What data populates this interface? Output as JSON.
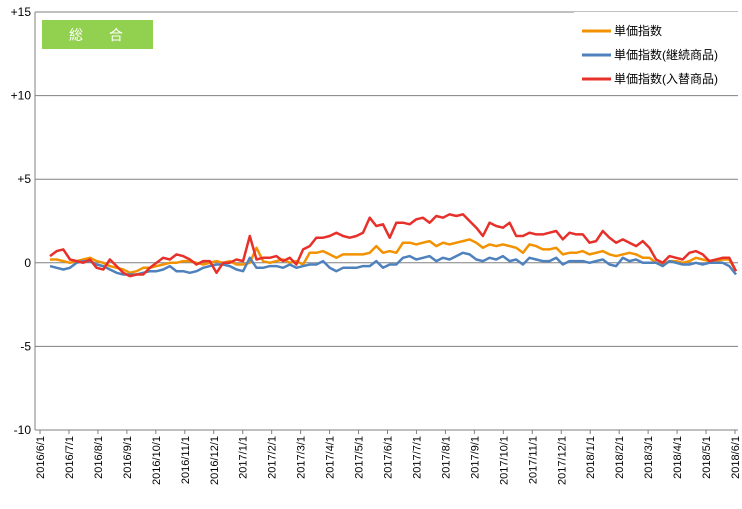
{
  "badge": {
    "label": "総　合",
    "color": "#92D050"
  },
  "chart_data": {
    "type": "line",
    "ylim": [
      -10,
      15
    ],
    "y_ticks": [
      {
        "value": 15,
        "label": "+15"
      },
      {
        "value": 10,
        "label": "+10"
      },
      {
        "value": 5,
        "label": "+5"
      },
      {
        "value": 0,
        "label": "0"
      },
      {
        "value": -5,
        "label": "-5"
      },
      {
        "value": -10,
        "label": "-10"
      }
    ],
    "grid": "horizontal",
    "legend_position": "top-right",
    "x_labels": [
      "2016/6/1",
      "2016/7/1",
      "2016/8/1",
      "2016/9/1",
      "2016/10/1",
      "2016/11/1",
      "2016/12/1",
      "2017/1/1",
      "2017/2/1",
      "2017/3/1",
      "2017/4/1",
      "2017/5/1",
      "2017/6/1",
      "2017/7/1",
      "2017/8/1",
      "2017/9/1",
      "2017/10/1",
      "2017/11/1",
      "2017/12/1",
      "2018/1/1",
      "2018/2/1",
      "2018/3/1",
      "2018/4/1",
      "2018/5/1",
      "2018/6/1"
    ],
    "series": [
      {
        "name": "単価指数",
        "color": "#F39200",
        "values": [
          0.2,
          0.2,
          0.1,
          0.0,
          0.1,
          0.2,
          0.3,
          0.1,
          0.0,
          -0.2,
          -0.3,
          -0.4,
          -0.6,
          -0.5,
          -0.3,
          -0.3,
          -0.2,
          -0.1,
          0.0,
          0.0,
          0.1,
          0.1,
          0.0,
          -0.1,
          0.0,
          0.1,
          0.0,
          0.1,
          -0.1,
          -0.1,
          0.0,
          0.9,
          0.1,
          0.0,
          0.1,
          0.2,
          0.0,
          0.1,
          -0.1,
          0.6,
          0.6,
          0.7,
          0.5,
          0.3,
          0.5,
          0.5,
          0.5,
          0.5,
          0.6,
          1.0,
          0.6,
          0.7,
          0.6,
          1.2,
          1.2,
          1.1,
          1.2,
          1.3,
          1.0,
          1.2,
          1.1,
          1.2,
          1.3,
          1.4,
          1.2,
          0.9,
          1.1,
          1.0,
          1.1,
          1.0,
          0.9,
          0.6,
          1.1,
          1.0,
          0.8,
          0.8,
          0.9,
          0.5,
          0.6,
          0.6,
          0.7,
          0.5,
          0.6,
          0.7,
          0.5,
          0.4,
          0.5,
          0.6,
          0.5,
          0.3,
          0.3,
          0.0,
          -0.1,
          0.1,
          0.1,
          0.0,
          0.1,
          0.3,
          0.2,
          0.1,
          0.1,
          0.2,
          0.2,
          -0.5
        ]
      },
      {
        "name": "単価指数(継続商品)",
        "color": "#4F81BD",
        "values": [
          -0.2,
          -0.3,
          -0.4,
          -0.3,
          0.0,
          0.1,
          0.1,
          -0.1,
          -0.2,
          -0.4,
          -0.6,
          -0.7,
          -0.7,
          -0.7,
          -0.6,
          -0.5,
          -0.5,
          -0.4,
          -0.2,
          -0.5,
          -0.5,
          -0.6,
          -0.5,
          -0.3,
          -0.2,
          -0.1,
          -0.1,
          -0.2,
          -0.4,
          -0.5,
          0.3,
          -0.3,
          -0.3,
          -0.2,
          -0.2,
          -0.3,
          -0.1,
          -0.3,
          -0.2,
          -0.1,
          -0.1,
          0.1,
          -0.3,
          -0.5,
          -0.3,
          -0.3,
          -0.3,
          -0.2,
          -0.2,
          0.1,
          -0.3,
          -0.1,
          -0.1,
          0.3,
          0.4,
          0.2,
          0.3,
          0.4,
          0.1,
          0.3,
          0.2,
          0.4,
          0.6,
          0.5,
          0.2,
          0.1,
          0.3,
          0.2,
          0.4,
          0.1,
          0.2,
          -0.1,
          0.3,
          0.2,
          0.1,
          0.1,
          0.3,
          -0.1,
          0.1,
          0.1,
          0.1,
          0.0,
          0.1,
          0.2,
          -0.1,
          -0.2,
          0.3,
          0.1,
          0.2,
          0.0,
          0.0,
          0.0,
          -0.2,
          0.1,
          0.0,
          -0.1,
          -0.1,
          0.0,
          -0.1,
          0.0,
          0.0,
          0.0,
          -0.2,
          -0.7
        ]
      },
      {
        "name": "単価指数(入替商品)",
        "color": "#E8302A",
        "values": [
          0.4,
          0.7,
          0.8,
          0.2,
          0.1,
          0.0,
          0.2,
          -0.3,
          -0.4,
          0.2,
          -0.2,
          -0.6,
          -0.8,
          -0.7,
          -0.7,
          -0.3,
          0.0,
          0.3,
          0.2,
          0.5,
          0.4,
          0.2,
          -0.1,
          0.1,
          0.1,
          -0.6,
          0.0,
          0.0,
          0.2,
          0.1,
          1.6,
          0.2,
          0.3,
          0.3,
          0.4,
          0.1,
          0.3,
          -0.1,
          0.8,
          1.0,
          1.5,
          1.5,
          1.6,
          1.8,
          1.6,
          1.5,
          1.6,
          1.8,
          2.7,
          2.2,
          2.3,
          1.5,
          2.4,
          2.4,
          2.3,
          2.6,
          2.7,
          2.4,
          2.8,
          2.7,
          2.9,
          2.8,
          2.9,
          2.5,
          2.1,
          1.6,
          2.4,
          2.2,
          2.1,
          2.4,
          1.6,
          1.6,
          1.8,
          1.7,
          1.7,
          1.8,
          1.9,
          1.4,
          1.8,
          1.7,
          1.7,
          1.2,
          1.3,
          1.9,
          1.5,
          1.2,
          1.4,
          1.2,
          1.0,
          1.3,
          0.9,
          0.2,
          0.0,
          0.4,
          0.3,
          0.2,
          0.6,
          0.7,
          0.5,
          0.1,
          0.2,
          0.3,
          0.3,
          -0.5
        ]
      }
    ]
  }
}
